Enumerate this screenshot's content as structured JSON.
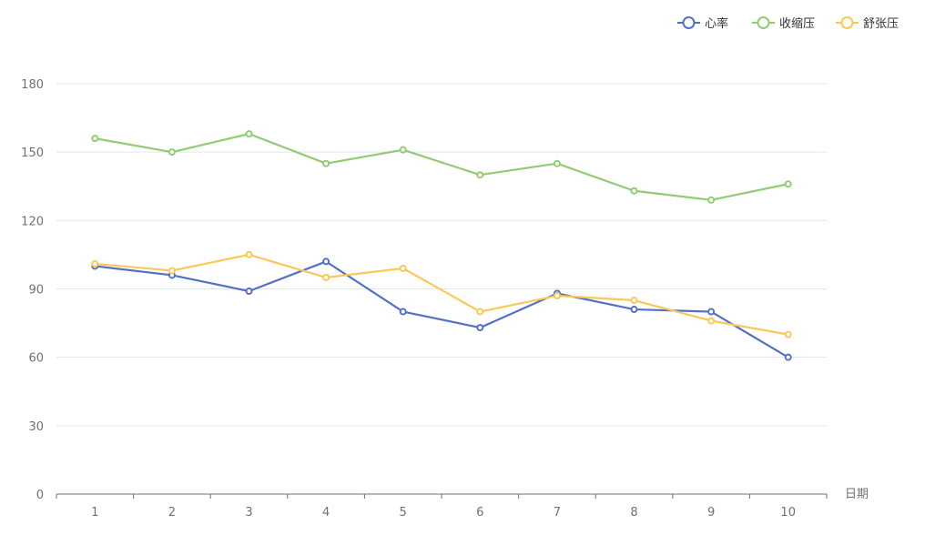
{
  "chart_data": {
    "type": "line",
    "title": "",
    "xlabel": "日期",
    "ylabel": "",
    "categories": [
      "1",
      "2",
      "3",
      "4",
      "5",
      "6",
      "7",
      "8",
      "9",
      "10"
    ],
    "ylim": [
      0,
      180
    ],
    "yticks": [
      0,
      30,
      60,
      90,
      120,
      150,
      180
    ],
    "grid": true,
    "legend_position": "top-right",
    "series": [
      {
        "name": "心率",
        "color": "#5470c6",
        "values": [
          100,
          96,
          89,
          102,
          80,
          73,
          88,
          81,
          80,
          60
        ]
      },
      {
        "name": "收缩压",
        "color": "#91cc75",
        "values": [
          156,
          150,
          158,
          145,
          151,
          140,
          145,
          133,
          129,
          136
        ]
      },
      {
        "name": "舒张压",
        "color": "#fac858",
        "values": [
          101,
          98,
          105,
          95,
          99,
          80,
          87,
          85,
          76,
          70
        ]
      }
    ]
  },
  "colors": {
    "axis_text": "#6e7079",
    "axis_line": "#6e7079",
    "grid_line": "#e0e6f1"
  }
}
